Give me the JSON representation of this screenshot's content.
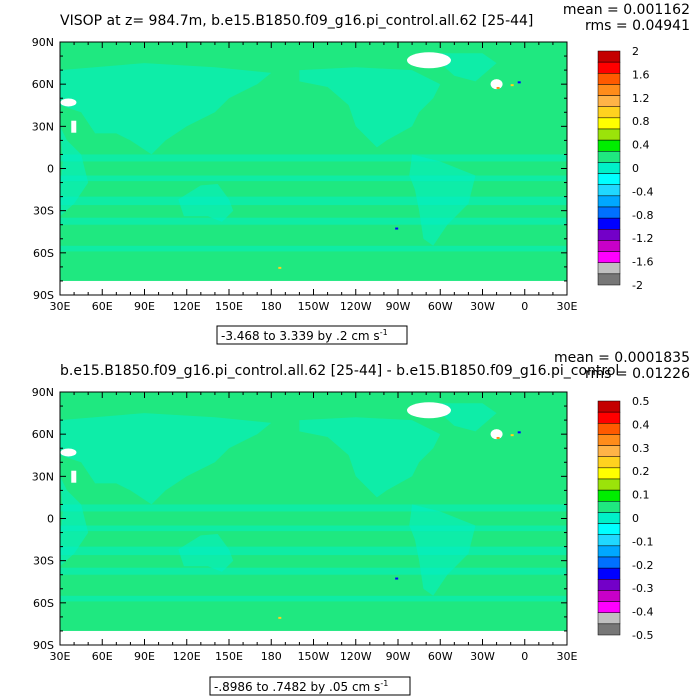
{
  "chart_data": [
    {
      "type": "heatmap",
      "title": "VISOP at z= 984.7m, b.e15.B1850.f09_g16.pi_control.all.62 [25-44]",
      "stats": {
        "mean": "mean = 0.001162",
        "rms": "rms = 0.04941"
      },
      "subtitle": "-3.468 to 3.339 by .2 cm s",
      "units_superscript": "-1",
      "x_ticks": [
        "30E",
        "60E",
        "90E",
        "120E",
        "150E",
        "180",
        "150W",
        "120W",
        "90W",
        "60W",
        "30W",
        "0",
        "30E"
      ],
      "y_ticks": [
        "90N",
        "60N",
        "30N",
        "0",
        "30S",
        "60S",
        "90S"
      ],
      "xlim": [
        30,
        390
      ],
      "ylim": [
        -90,
        90
      ],
      "colorbar": {
        "labels": [
          "2",
          "1.6",
          "1.2",
          "0.8",
          "0.4",
          "0",
          "-0.4",
          "-0.8",
          "-1.2",
          "-1.6",
          "-2"
        ],
        "colors": [
          "#c40000",
          "#ff0000",
          "#ff5a00",
          "#ff8c1a",
          "#ffb347",
          "#ffd21f",
          "#ffff00",
          "#9be30a",
          "#00ee00",
          "#1fe880",
          "#00f0c8",
          "#00ffff",
          "#20d8ff",
          "#00a8ff",
          "#0070ff",
          "#0000ff",
          "#7300c8",
          "#c800c8",
          "#ff00ff",
          "#c0c0c0",
          "#777777"
        ]
      },
      "field": {
        "background": "#1fe880",
        "secondary": "#00f0c8",
        "missing": "#ffffff",
        "hotspots": [
          "#ffd21f",
          "#0000ff",
          "#ff8c1a"
        ]
      }
    },
    {
      "type": "heatmap",
      "title": "b.e15.B1850.f09_g16.pi_control.all.62 [25-44] - b.e15.B1850.f09_g16.pi_control",
      "stats": {
        "mean": "mean = 0.0001835",
        "rms": "rms = 0.01226"
      },
      "subtitle": "-.8986 to .7482 by .05 cm s",
      "units_superscript": "-1",
      "x_ticks": [
        "30E",
        "60E",
        "90E",
        "120E",
        "150E",
        "180",
        "150W",
        "120W",
        "90W",
        "60W",
        "30W",
        "0",
        "30E"
      ],
      "y_ticks": [
        "90N",
        "60N",
        "30N",
        "0",
        "30S",
        "60S",
        "90S"
      ],
      "xlim": [
        30,
        390
      ],
      "ylim": [
        -90,
        90
      ],
      "colorbar": {
        "labels": [
          "0.5",
          "0.4",
          "0.3",
          "0.2",
          "0.1",
          "0",
          "-0.1",
          "-0.2",
          "-0.3",
          "-0.4",
          "-0.5"
        ],
        "colors": [
          "#c40000",
          "#ff0000",
          "#ff5a00",
          "#ff8c1a",
          "#ffb347",
          "#ffd21f",
          "#ffff00",
          "#9be30a",
          "#00ee00",
          "#1fe880",
          "#00f0c8",
          "#00ffff",
          "#20d8ff",
          "#00a8ff",
          "#0070ff",
          "#0000ff",
          "#7300c8",
          "#c800c8",
          "#ff00ff",
          "#c0c0c0",
          "#777777"
        ]
      },
      "field": {
        "background": "#1fe880",
        "secondary": "#00f0c8",
        "missing": "#ffffff",
        "hotspots": [
          "#ffd21f",
          "#0000ff",
          "#ff8c1a"
        ]
      }
    }
  ]
}
